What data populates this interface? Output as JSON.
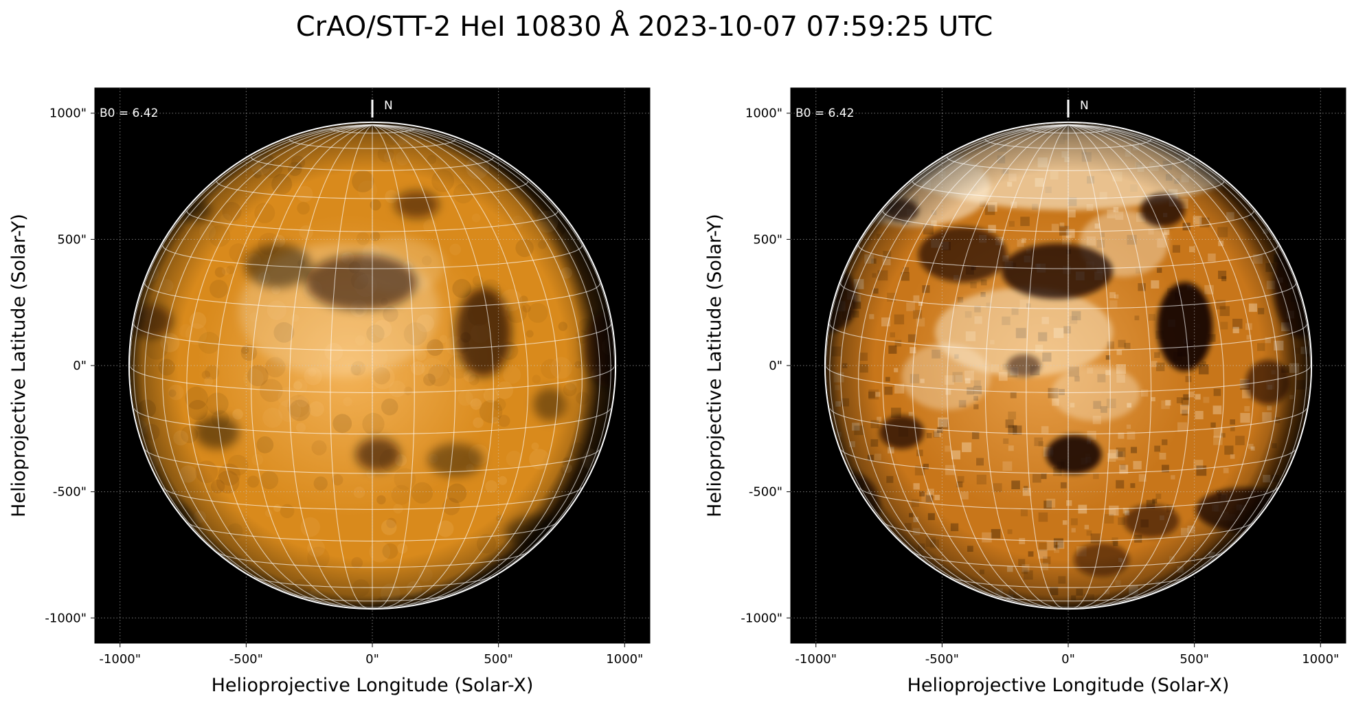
{
  "figure": {
    "title": "CrAO/STT-2 HeI 10830 Å 2023-10-07 07:59:25 UTC"
  },
  "panels": [
    {
      "id": "left",
      "b0_label": "B0 = 6.42",
      "north_label": "N",
      "xlabel": "Helioprojective Longitude (Solar-X)",
      "ylabel": "Helioprojective Latitude (Solar-Y)",
      "xticks": [
        "-1000\"",
        "-500\"",
        "0\"",
        "500\"",
        "1000\""
      ],
      "yticks": [
        "1000\"",
        "500\"",
        "0\"",
        "-500\"",
        "-1000\""
      ],
      "style": "smooth",
      "disk_colors": {
        "center": "#f4b45a",
        "mid": "#d98a1c",
        "edge": "#3a2206"
      },
      "dark_features": [
        {
          "cx": 0.48,
          "cy": 0.35,
          "rx": 0.1,
          "ry": 0.05,
          "o": 0.55
        },
        {
          "cx": 0.33,
          "cy": 0.32,
          "rx": 0.06,
          "ry": 0.04,
          "o": 0.45
        },
        {
          "cx": 0.58,
          "cy": 0.21,
          "rx": 0.04,
          "ry": 0.025,
          "o": 0.5
        },
        {
          "cx": 0.18,
          "cy": 0.22,
          "rx": 0.03,
          "ry": 0.02,
          "o": 0.45
        },
        {
          "cx": 0.7,
          "cy": 0.44,
          "rx": 0.05,
          "ry": 0.08,
          "o": 0.65
        },
        {
          "cx": 0.1,
          "cy": 0.42,
          "rx": 0.04,
          "ry": 0.03,
          "o": 0.5
        },
        {
          "cx": 0.93,
          "cy": 0.47,
          "rx": 0.05,
          "ry": 0.07,
          "o": 0.55
        },
        {
          "cx": 0.51,
          "cy": 0.66,
          "rx": 0.04,
          "ry": 0.03,
          "o": 0.55
        },
        {
          "cx": 0.22,
          "cy": 0.62,
          "rx": 0.04,
          "ry": 0.03,
          "o": 0.45
        },
        {
          "cx": 0.12,
          "cy": 0.78,
          "rx": 0.06,
          "ry": 0.04,
          "o": 0.45
        },
        {
          "cx": 0.8,
          "cy": 0.8,
          "rx": 0.06,
          "ry": 0.03,
          "o": 0.45
        },
        {
          "cx": 0.65,
          "cy": 0.67,
          "rx": 0.05,
          "ry": 0.03,
          "o": 0.4
        },
        {
          "cx": 0.82,
          "cy": 0.57,
          "rx": 0.03,
          "ry": 0.03,
          "o": 0.4
        }
      ],
      "bright_features": [
        {
          "cx": 0.44,
          "cy": 0.4,
          "rx": 0.18,
          "ry": 0.12,
          "o": 0.25
        },
        {
          "cx": 0.55,
          "cy": 0.32,
          "rx": 0.08,
          "ry": 0.05,
          "o": 0.2
        }
      ]
    },
    {
      "id": "right",
      "b0_label": "B0 = 6.42",
      "north_label": "N",
      "xlabel": "Helioprojective Longitude (Solar-X)",
      "ylabel": "Helioprojective Latitude (Solar-Y)",
      "xticks": [
        "-1000\"",
        "-500\"",
        "0\"",
        "500\"",
        "1000\""
      ],
      "yticks": [
        "1000\"",
        "500\"",
        "0\"",
        "-500\"",
        "-1000\""
      ],
      "style": "contrast",
      "disk_colors": {
        "center": "#e8a04a",
        "mid": "#c8761a",
        "edge": "#6a3a08"
      },
      "dark_features": [
        {
          "cx": 0.48,
          "cy": 0.33,
          "rx": 0.1,
          "ry": 0.05,
          "o": 0.75
        },
        {
          "cx": 0.31,
          "cy": 0.3,
          "rx": 0.08,
          "ry": 0.05,
          "o": 0.65
        },
        {
          "cx": 0.67,
          "cy": 0.22,
          "rx": 0.04,
          "ry": 0.03,
          "o": 0.75
        },
        {
          "cx": 0.2,
          "cy": 0.22,
          "rx": 0.03,
          "ry": 0.02,
          "o": 0.7
        },
        {
          "cx": 0.71,
          "cy": 0.43,
          "rx": 0.05,
          "ry": 0.08,
          "o": 0.9
        },
        {
          "cx": 0.07,
          "cy": 0.38,
          "rx": 0.05,
          "ry": 0.06,
          "o": 0.7
        },
        {
          "cx": 0.92,
          "cy": 0.35,
          "rx": 0.05,
          "ry": 0.1,
          "o": 0.7
        },
        {
          "cx": 0.51,
          "cy": 0.66,
          "rx": 0.05,
          "ry": 0.035,
          "o": 0.85
        },
        {
          "cx": 0.2,
          "cy": 0.62,
          "rx": 0.04,
          "ry": 0.03,
          "o": 0.7
        },
        {
          "cx": 0.1,
          "cy": 0.75,
          "rx": 0.06,
          "ry": 0.06,
          "o": 0.6
        },
        {
          "cx": 0.82,
          "cy": 0.76,
          "rx": 0.09,
          "ry": 0.04,
          "o": 0.75
        },
        {
          "cx": 0.65,
          "cy": 0.78,
          "rx": 0.05,
          "ry": 0.03,
          "o": 0.55
        },
        {
          "cx": 0.86,
          "cy": 0.53,
          "rx": 0.04,
          "ry": 0.04,
          "o": 0.6
        },
        {
          "cx": 0.42,
          "cy": 0.5,
          "rx": 0.03,
          "ry": 0.02,
          "o": 0.5
        },
        {
          "cx": 0.56,
          "cy": 0.85,
          "rx": 0.05,
          "ry": 0.03,
          "o": 0.5
        }
      ],
      "bright_features": [
        {
          "cx": 0.5,
          "cy": 0.1,
          "rx": 0.35,
          "ry": 0.12,
          "o": 0.6
        },
        {
          "cx": 0.22,
          "cy": 0.18,
          "rx": 0.14,
          "ry": 0.07,
          "o": 0.55
        },
        {
          "cx": 0.42,
          "cy": 0.44,
          "rx": 0.16,
          "ry": 0.08,
          "o": 0.45
        },
        {
          "cx": 0.6,
          "cy": 0.28,
          "rx": 0.08,
          "ry": 0.06,
          "o": 0.4
        },
        {
          "cx": 0.28,
          "cy": 0.52,
          "rx": 0.08,
          "ry": 0.06,
          "o": 0.35
        },
        {
          "cx": 0.55,
          "cy": 0.55,
          "rx": 0.08,
          "ry": 0.05,
          "o": 0.35
        }
      ]
    }
  ]
}
